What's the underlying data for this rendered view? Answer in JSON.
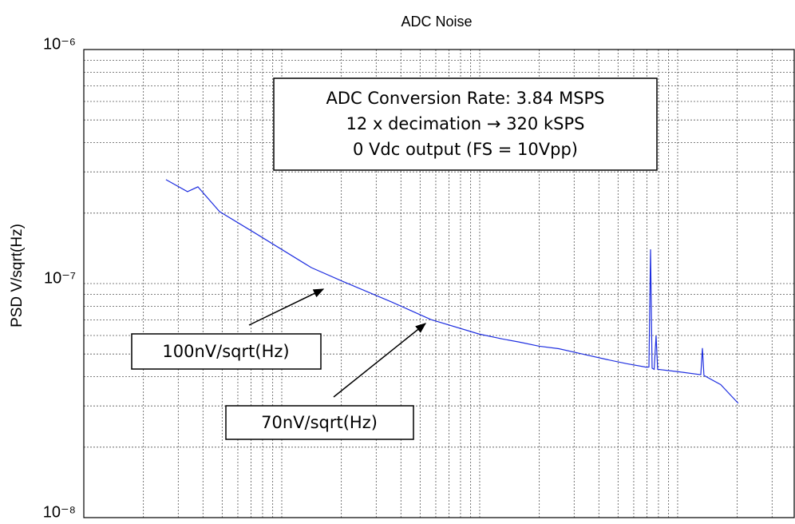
{
  "chart_data": {
    "type": "line",
    "title": "ADC Noise",
    "ylabel": "PSD V/sqrt(Hz)",
    "xscale": "log",
    "yscale": "log",
    "grid": true,
    "minor_grid": true,
    "xlim": [
      10,
      38800
    ],
    "xticks": [
      10,
      100,
      1000,
      10000
    ],
    "ylim": [
      1e-08,
      1e-06
    ],
    "yticks": [
      {
        "value": 1e-08,
        "label": "10⁻⁸"
      },
      {
        "value": 1e-07,
        "label": "10⁻⁷"
      },
      {
        "value": 1e-06,
        "label": "10⁻⁶"
      }
    ],
    "series": [
      {
        "name": "PSD",
        "color": "#1f2fe0",
        "x": [
          26.0,
          33.4,
          37.7,
          48.5,
          73.6,
          141,
          204,
          357,
          567,
          991,
          1300,
          1577,
          2000,
          2506,
          3300,
          4376,
          5500,
          6966,
          7161,
          7295,
          7430,
          7610,
          7780,
          7925,
          10090,
          13090,
          13340,
          13580,
          16500,
          20230
        ],
        "values": [
          2.78e-07,
          2.47e-07,
          2.59e-07,
          2.03e-07,
          1.64e-07,
          1.17e-07,
          1.02e-07,
          8.36e-08,
          7.02e-08,
          6.09e-08,
          5.8e-08,
          5.63e-08,
          5.4e-08,
          5.27e-08,
          5e-08,
          4.74e-08,
          4.55e-08,
          4.39e-08,
          4.4e-08,
          1.4e-07,
          4.35e-08,
          4.3e-08,
          6e-08,
          4.3e-08,
          4.2e-08,
          4.08e-08,
          5.3e-08,
          4.05e-08,
          3.7e-08,
          3.08e-08
        ]
      }
    ],
    "annotations": [
      {
        "lines": [
          "ADC Conversion Rate: 3.84 MSPS",
          "12 x decimation  → 320 kSPS",
          "0 Vdc output (FS = 10Vpp)"
        ]
      },
      {
        "lines": [
          "100nV/sqrt(Hz)"
        ]
      },
      {
        "lines": [
          "70nV/sqrt(Hz)"
        ]
      }
    ]
  }
}
